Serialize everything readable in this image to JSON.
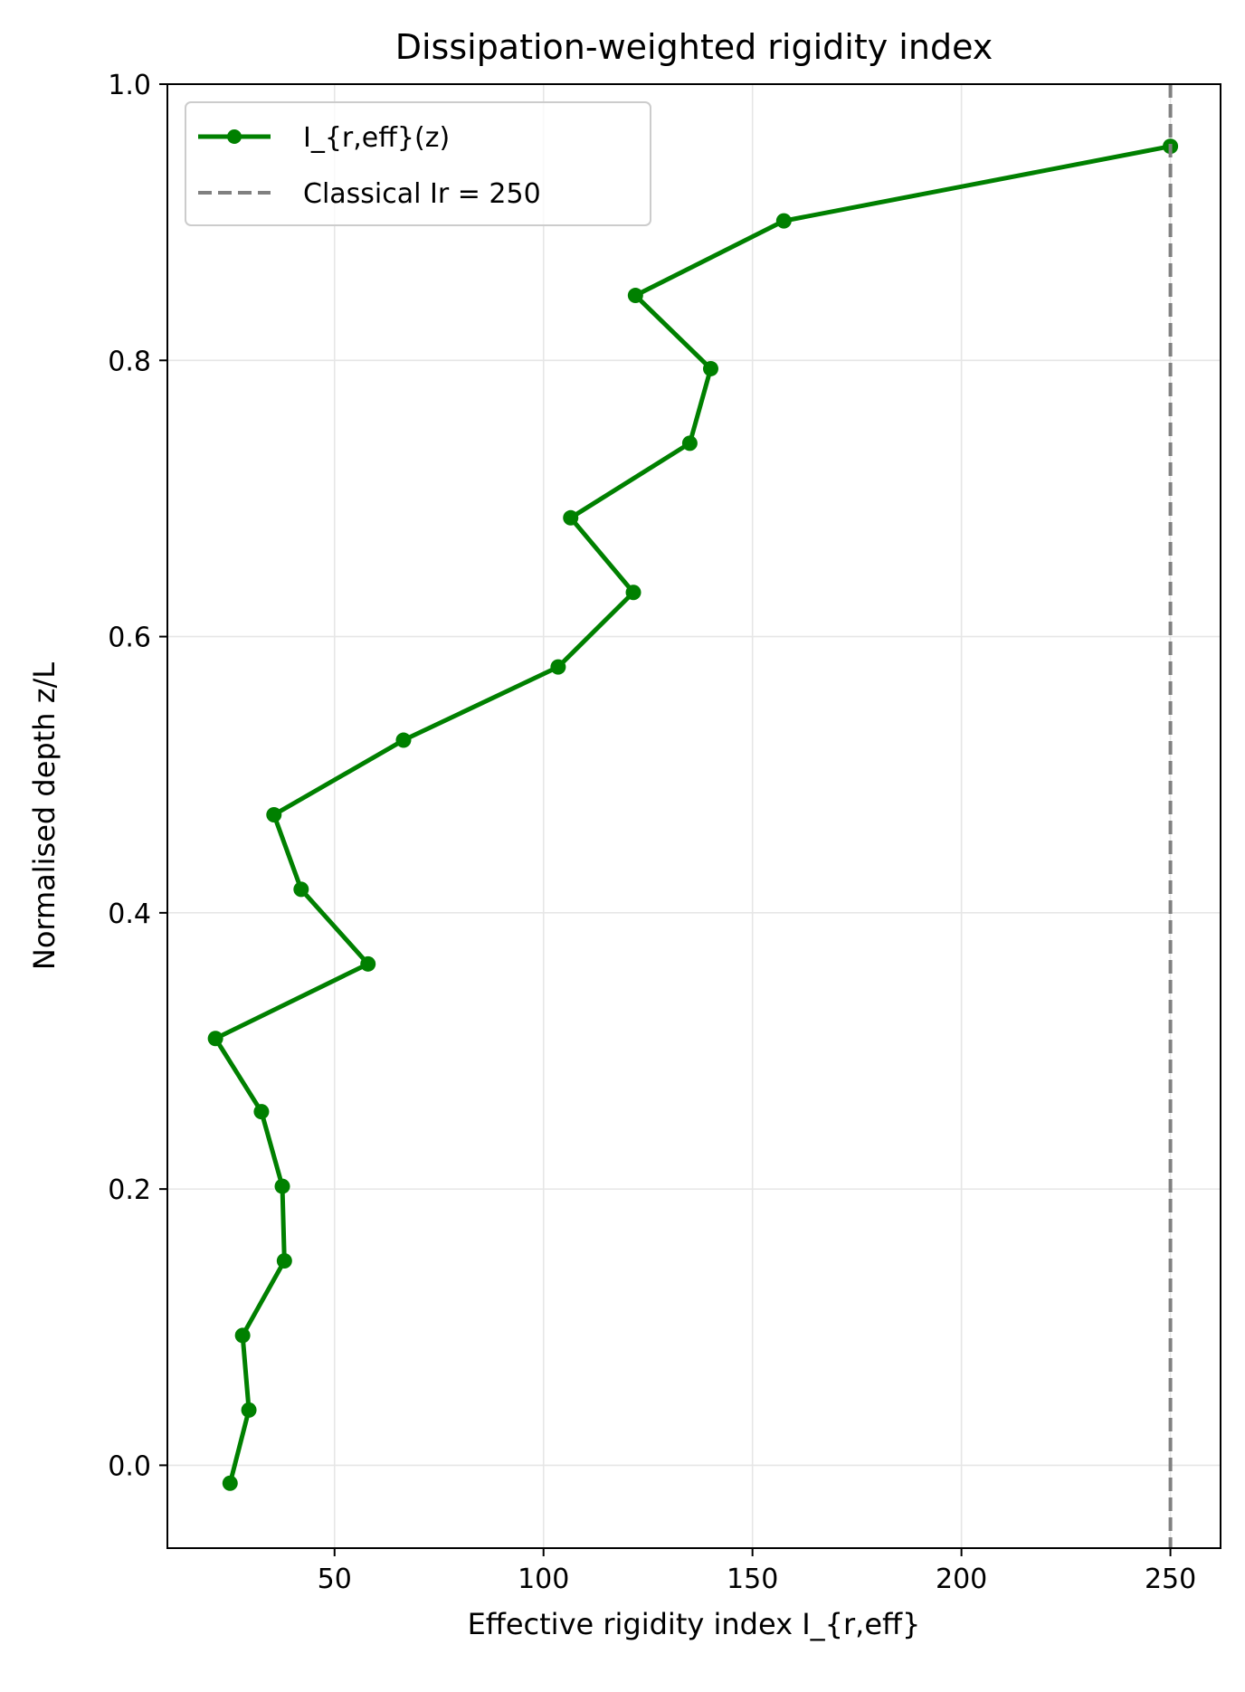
{
  "chart_data": {
    "type": "line",
    "title": "Dissipation-weighted rigidity index",
    "xlabel": "Effective rigidity index I_{r,eff}",
    "ylabel": "Normalised depth z/L",
    "xlim": [
      10,
      262
    ],
    "ylim": [
      -0.06,
      1.0
    ],
    "xticks": [
      50,
      100,
      150,
      200,
      250
    ],
    "xtick_labels": [
      "50",
      "100",
      "150",
      "200",
      "250"
    ],
    "yticks": [
      0.0,
      0.2,
      0.4,
      0.6,
      0.8,
      1.0
    ],
    "ytick_labels": [
      "0.0",
      "0.2",
      "0.4",
      "0.6",
      "0.8",
      "1.0"
    ],
    "grid": true,
    "legend_position": "top-left",
    "series": [
      {
        "name": "I_{r,eff}(z)",
        "color": "#008000",
        "style": "solid",
        "marker": "circle",
        "points": [
          {
            "x": 25.0,
            "y": -0.013
          },
          {
            "x": 29.5,
            "y": 0.04
          },
          {
            "x": 28.0,
            "y": 0.094
          },
          {
            "x": 38.0,
            "y": 0.148
          },
          {
            "x": 37.5,
            "y": 0.202
          },
          {
            "x": 32.5,
            "y": 0.256
          },
          {
            "x": 21.5,
            "y": 0.309
          },
          {
            "x": 58.0,
            "y": 0.363
          },
          {
            "x": 42.0,
            "y": 0.417
          },
          {
            "x": 35.5,
            "y": 0.471
          },
          {
            "x": 66.5,
            "y": 0.525
          },
          {
            "x": 103.5,
            "y": 0.578
          },
          {
            "x": 121.5,
            "y": 0.632
          },
          {
            "x": 106.5,
            "y": 0.686
          },
          {
            "x": 135.0,
            "y": 0.74
          },
          {
            "x": 140.0,
            "y": 0.794
          },
          {
            "x": 122.0,
            "y": 0.847
          },
          {
            "x": 157.5,
            "y": 0.901
          },
          {
            "x": 250.0,
            "y": 0.955
          }
        ]
      },
      {
        "name": "Classical Ir = 250",
        "color": "#808080",
        "style": "dashed",
        "x_constant": 250
      }
    ]
  }
}
